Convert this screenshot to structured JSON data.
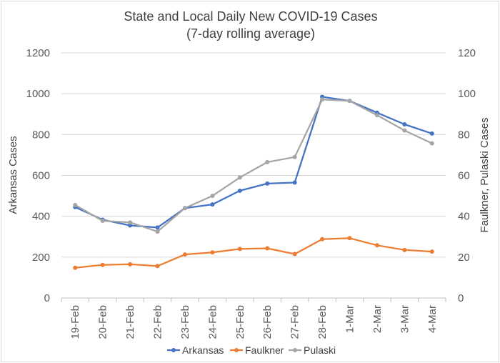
{
  "chart_data": {
    "type": "line",
    "title": "State and Local Daily New COVID-19 Cases",
    "subtitle": "(7-day rolling average)",
    "ylabel": "Arkansas Cases",
    "y2label": "Faulkner, Pulaski Cases",
    "categories": [
      "19-Feb",
      "20-Feb",
      "21-Feb",
      "22-Feb",
      "23-Feb",
      "24-Feb",
      "25-Feb",
      "26-Feb",
      "27-Feb",
      "28-Feb",
      "1-Mar",
      "2-Mar",
      "3-Mar",
      "4-Mar"
    ],
    "ylim": [
      0,
      1200
    ],
    "y2lim": [
      0,
      120
    ],
    "yticks": [
      "0",
      "200",
      "400",
      "600",
      "800",
      "1000",
      "1200"
    ],
    "y2ticks": [
      "0",
      "20",
      "40",
      "60",
      "80",
      "100",
      "120"
    ],
    "grid": true,
    "legend_position": "bottom",
    "series": [
      {
        "name": "Arkansas",
        "axis": "left",
        "color": "#4472c4",
        "values": [
          445,
          383,
          355,
          345,
          440,
          458,
          525,
          560,
          565,
          985,
          965,
          907,
          850,
          805
        ]
      },
      {
        "name": "Faulkner",
        "axis": "right",
        "color": "#ed7d31",
        "values": [
          14.8,
          16.2,
          16.5,
          15.6,
          21.3,
          22.3,
          24.0,
          24.3,
          21.5,
          28.8,
          29.3,
          25.8,
          23.5,
          22.7
        ]
      },
      {
        "name": "Pulaski",
        "axis": "right",
        "color": "#a5a5a5",
        "values": [
          45.5,
          37.8,
          37.0,
          32.5,
          44.0,
          50.0,
          59.0,
          66.5,
          69.0,
          97.2,
          96.5,
          89.5,
          82.0,
          75.7
        ]
      }
    ]
  }
}
